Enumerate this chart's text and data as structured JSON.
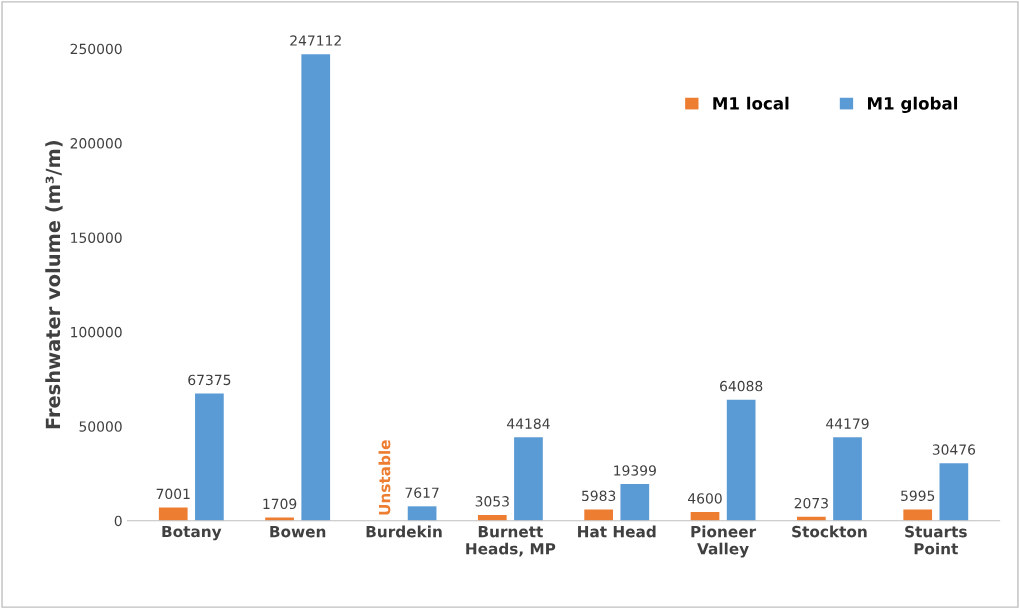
{
  "chart_data": {
    "type": "bar",
    "ylabel": "Freshwater volume (m³/m)",
    "categories": [
      "Botany",
      "Bowen",
      "Burdekin",
      "Burnett\nHeads, MP",
      "Hat Head",
      "Pioneer\nValley",
      "Stockton",
      "Stuarts\nPoint"
    ],
    "series": [
      {
        "name": "M1 local",
        "color": "#ed7d31",
        "values": [
          7001,
          1709,
          null,
          3053,
          5983,
          4600,
          2073,
          5995
        ],
        "value_labels": [
          "7001",
          "1709",
          "Unstable",
          "3053",
          "5983",
          "4600",
          "2073",
          "5995"
        ]
      },
      {
        "name": "M1 global",
        "color": "#5b9bd5",
        "values": [
          67375,
          247112,
          7617,
          44184,
          19399,
          64088,
          44179,
          30476
        ],
        "value_labels": [
          "67375",
          "247112",
          "7617",
          "44184",
          "19399",
          "64088",
          "44179",
          "30476"
        ]
      }
    ],
    "ylim": [
      0,
      250000
    ],
    "yticks": [
      0,
      50000,
      100000,
      150000,
      200000,
      250000
    ],
    "grid": false,
    "legend": "top right"
  }
}
